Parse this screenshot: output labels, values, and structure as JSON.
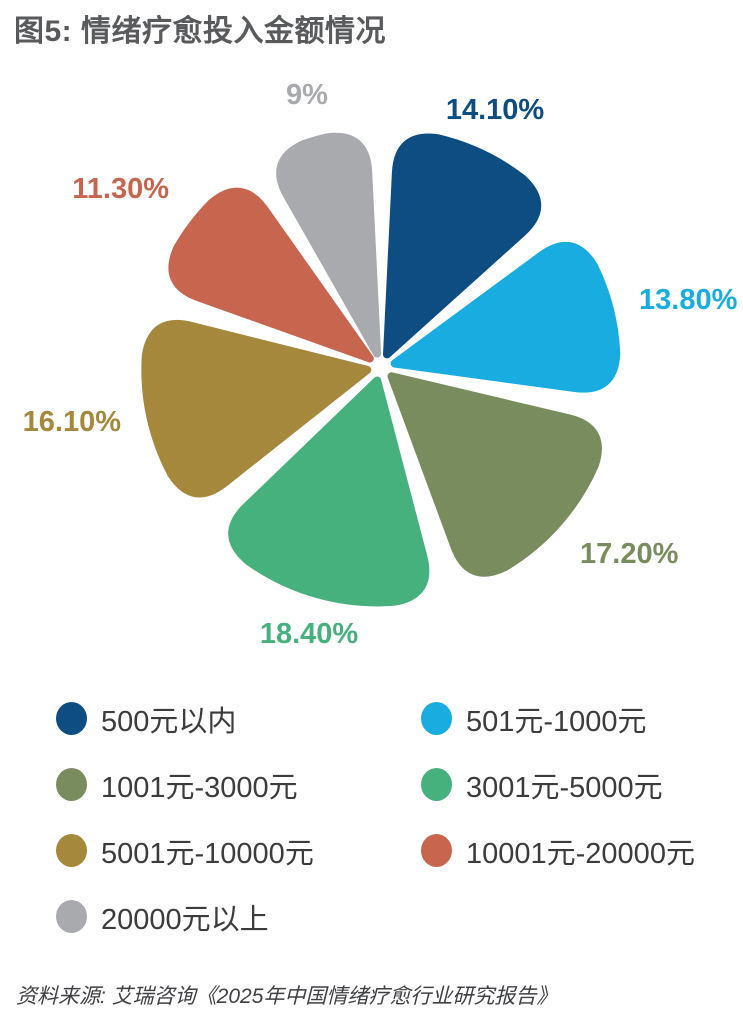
{
  "title": "图5: 情绪疗愈投入金额情况",
  "source": "资料来源: 艾瑞咨询《2025年中国情绪疗愈行业研究报告》",
  "chart_data": {
    "type": "pie",
    "title": "情绪疗愈投入金额情况",
    "style": "exploded rounded-petal pie",
    "start_angle_deg": 0,
    "direction": "clockwise",
    "legend_position": "bottom",
    "slices": [
      {
        "label": "500元以内",
        "value": 14.1,
        "display": "14.10%",
        "color": "#0d4d82"
      },
      {
        "label": "501元-1000元",
        "value": 13.8,
        "display": "13.80%",
        "color": "#19ace0"
      },
      {
        "label": "1001元-3000元",
        "value": 17.2,
        "display": "17.20%",
        "color": "#798c5e"
      },
      {
        "label": "3001元-5000元",
        "value": 18.4,
        "display": "18.40%",
        "color": "#47b17d"
      },
      {
        "label": "5001元-10000元",
        "value": 16.1,
        "display": "16.10%",
        "color": "#a5883c"
      },
      {
        "label": "10001元-20000元",
        "value": 11.3,
        "display": "11.30%",
        "color": "#c8654f"
      },
      {
        "label": "20000元以上",
        "value": 9.0,
        "display": "9%",
        "color": "#a8aaad"
      }
    ]
  }
}
